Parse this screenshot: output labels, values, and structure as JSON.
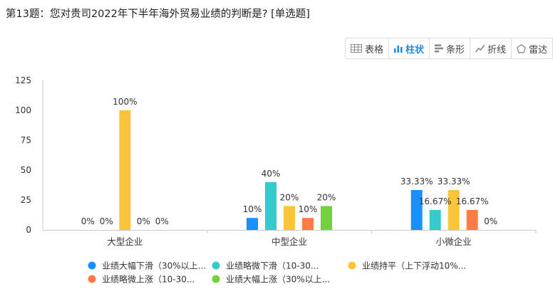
{
  "question": {
    "title": "第13题：您对贵司2022年下半年海外贸易业绩的判断是? [单选题]"
  },
  "toolbar": {
    "buttons": [
      {
        "label": "表格",
        "icon": "table-icon",
        "active": false
      },
      {
        "label": "柱状",
        "icon": "bar-chart-icon",
        "active": true
      },
      {
        "label": "条形",
        "icon": "horizontal-bar-icon",
        "active": false
      },
      {
        "label": "折线",
        "icon": "line-chart-icon",
        "active": false
      },
      {
        "label": "雷达",
        "icon": "radar-icon",
        "active": false
      }
    ]
  },
  "colors": {
    "axis": "#c8c8c8",
    "grid": "#e6e6e6"
  },
  "chart_data": {
    "type": "bar",
    "categories": [
      "大型企业",
      "中型企业",
      "小微企业"
    ],
    "ylim": [
      0,
      125
    ],
    "yticks": [
      0,
      25,
      50,
      75,
      100,
      125
    ],
    "grid": false,
    "legend_position": "bottom",
    "series": [
      {
        "name": "业绩大幅下滑（30%以上...",
        "color": "#1890ff",
        "values": [
          0,
          10,
          33.33
        ],
        "labels": [
          "0%",
          "10%",
          "33.33%"
        ]
      },
      {
        "name": "业绩略微下滑（10-30...",
        "color": "#36cbcb",
        "values": [
          0,
          40,
          16.67
        ],
        "labels": [
          "0%",
          "40%",
          "16.67%"
        ]
      },
      {
        "name": "业绩持平（上下浮动10%...",
        "color": "#fbc53a",
        "values": [
          100,
          20,
          33.33
        ],
        "labels": [
          "100%",
          "20%",
          "33.33%"
        ]
      },
      {
        "name": "业绩略微上涨（10-30...",
        "color": "#ff7a45",
        "values": [
          0,
          10,
          16.67
        ],
        "labels": [
          "0%",
          "10%",
          "16.67%"
        ]
      },
      {
        "name": "业绩大幅上涨（30%以上...",
        "color": "#73d13d",
        "values": [
          0,
          20,
          0
        ],
        "labels": [
          "0%",
          "20%",
          "0%"
        ]
      }
    ]
  }
}
